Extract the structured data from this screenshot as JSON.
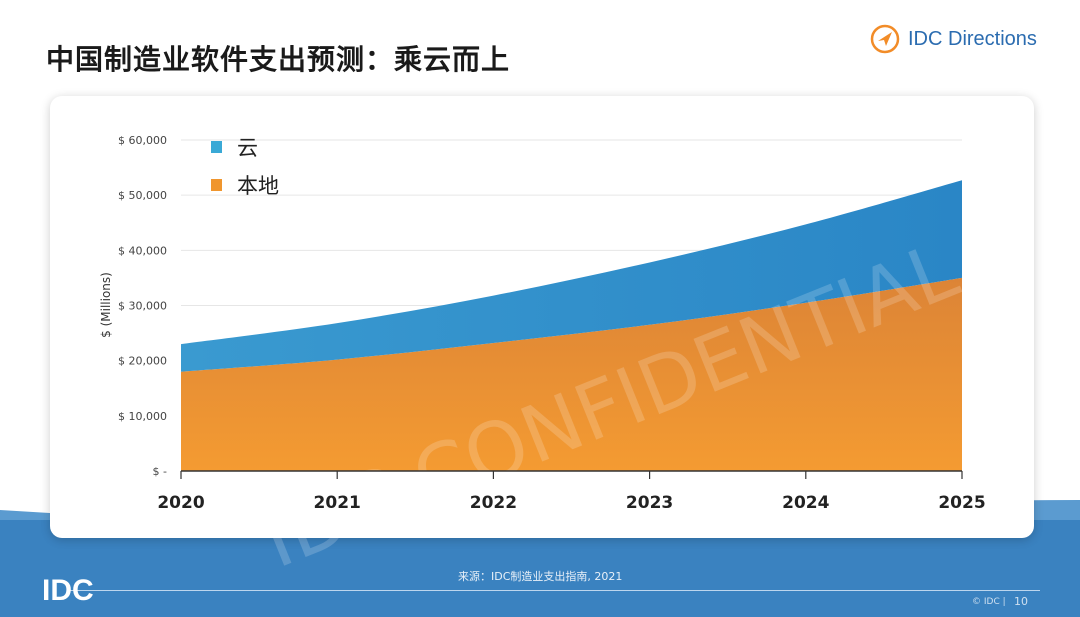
{
  "slide": {
    "title": "中国制造业软件支出预测：乘云而上",
    "brand": "IDC Directions",
    "source": "来源：IDC制造业支出指南, 2021",
    "copyright": "© IDC |",
    "page_number": "10",
    "footer_logo": "IDC",
    "watermark": "IDC CONFIDENTIAL"
  },
  "colors": {
    "cloud": "#2f8fcc",
    "local": "#f0962e",
    "band": "#3a82c0",
    "brand": "#2b6cb0",
    "logo_orange": "#f28c28"
  },
  "chart_data": {
    "type": "area",
    "stacked": true,
    "categories": [
      "2020",
      "2021",
      "2022",
      "2023",
      "2024",
      "2025"
    ],
    "series": [
      {
        "name": "本地",
        "values": [
          18000,
          20200,
          23200,
          26500,
          30500,
          35000
        ]
      },
      {
        "name": "云",
        "values": [
          5000,
          6600,
          8600,
          11300,
          14200,
          17700
        ]
      }
    ],
    "ylabel": "$ (Millions)",
    "ylim": [
      0,
      60000
    ],
    "yticks": [
      0,
      10000,
      20000,
      30000,
      40000,
      50000,
      60000
    ],
    "ytick_labels": [
      "$ -",
      "$ 10,000",
      "$ 20,000",
      "$ 30,000",
      "$ 40,000",
      "$ 50,000",
      "$ 60,000"
    ],
    "grid": true,
    "legend": "top-left"
  }
}
